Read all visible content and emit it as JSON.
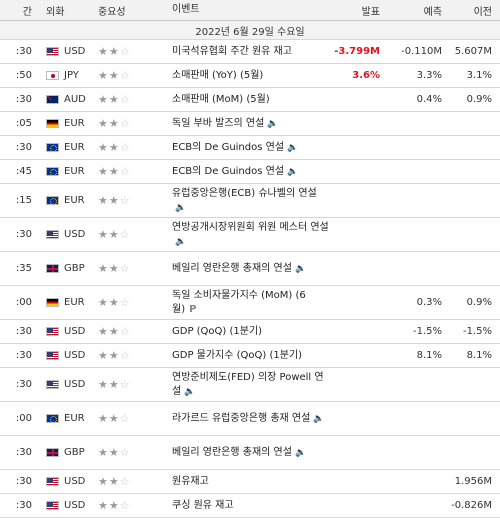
{
  "header": {
    "time": "간",
    "currency": "외화",
    "importance": "중요성",
    "event": "이벤트",
    "actual": "발표",
    "forecast": "예측",
    "previous": "이전"
  },
  "date_label": "2022년 6월 29일 수요일",
  "rows": [
    {
      "time": ":30",
      "flag": "us",
      "currency": "USD",
      "stars": 2,
      "event": "미국석유협회 주간 원유 재고",
      "actual": "-3.799M",
      "actual_red": true,
      "forecast": "-0.110M",
      "previous": "5.607M",
      "speech": false,
      "lines": 1
    },
    {
      "time": ":50",
      "flag": "jp",
      "currency": "JPY",
      "stars": 2,
      "event": "소매판매 (YoY) (5월)",
      "actual": "3.6%",
      "actual_red": true,
      "forecast": "3.3%",
      "previous": "3.1%",
      "speech": false,
      "lines": 1
    },
    {
      "time": ":30",
      "flag": "au",
      "currency": "AUD",
      "stars": 2,
      "event": "소매판매 (MoM) (5월)",
      "actual": "",
      "actual_red": false,
      "forecast": "0.4%",
      "previous": "0.9%",
      "speech": false,
      "lines": 1
    },
    {
      "time": ":05",
      "flag": "de",
      "currency": "EUR",
      "stars": 2,
      "event": "독일 부바 발즈의 연설",
      "actual": "",
      "actual_red": false,
      "forecast": "",
      "previous": "",
      "speech": true,
      "lines": 1
    },
    {
      "time": ":30",
      "flag": "eu",
      "currency": "EUR",
      "stars": 2,
      "event": "ECB의 De Guindos 연설",
      "actual": "",
      "actual_red": false,
      "forecast": "",
      "previous": "",
      "speech": true,
      "lines": 1
    },
    {
      "time": ":45",
      "flag": "eu",
      "currency": "EUR",
      "stars": 2,
      "event": "ECB의 De Guindos 연설",
      "actual": "",
      "actual_red": false,
      "forecast": "",
      "previous": "",
      "speech": true,
      "lines": 1
    },
    {
      "time": ":15",
      "flag": "eu",
      "currency": "EUR",
      "stars": 2,
      "event": "유럽중앙은행(ECB) 슈나벨의 연설",
      "actual": "",
      "actual_red": false,
      "forecast": "",
      "previous": "",
      "speech": true,
      "lines": 2
    },
    {
      "time": ":30",
      "flag": "us",
      "currency": "USD",
      "stars": 2,
      "event": "연방공개시장위원회 위원 메스터 연설",
      "actual": "",
      "actual_red": false,
      "forecast": "",
      "previous": "",
      "speech": true,
      "lines": 2
    },
    {
      "time": ":35",
      "flag": "gb",
      "currency": "GBP",
      "stars": 2,
      "event": "베일리 영란은행 총재의 연설",
      "actual": "",
      "actual_red": false,
      "forecast": "",
      "previous": "",
      "speech": true,
      "lines": 2
    },
    {
      "time": ":00",
      "flag": "de",
      "currency": "EUR",
      "stars": 2,
      "event": "독일 소비자물가지수 (MoM) (6월)",
      "actual": "",
      "actual_red": false,
      "forecast": "0.3%",
      "previous": "0.9%",
      "speech": false,
      "prelim": "P",
      "lines": 2
    },
    {
      "time": ":30",
      "flag": "us",
      "currency": "USD",
      "stars": 2,
      "event": "GDP (QoQ) (1분기)",
      "actual": "",
      "actual_red": false,
      "forecast": "-1.5%",
      "previous": "-1.5%",
      "speech": false,
      "lines": 1
    },
    {
      "time": ":30",
      "flag": "us",
      "currency": "USD",
      "stars": 2,
      "event": "GDP 물가지수 (QoQ) (1분기)",
      "actual": "",
      "actual_red": false,
      "forecast": "8.1%",
      "previous": "8.1%",
      "speech": false,
      "lines": 1
    },
    {
      "time": ":30",
      "flag": "us",
      "currency": "USD",
      "stars": 2,
      "event": "연방준비제도(FED) 의장 Powell 연설",
      "actual": "",
      "actual_red": false,
      "forecast": "",
      "previous": "",
      "speech": true,
      "lines": 2
    },
    {
      "time": ":00",
      "flag": "eu",
      "currency": "EUR",
      "stars": 2,
      "event": "라가르드 유럽중앙은행 총재 연설",
      "actual": "",
      "actual_red": false,
      "forecast": "",
      "previous": "",
      "speech": true,
      "lines": 2
    },
    {
      "time": ":30",
      "flag": "gb",
      "currency": "GBP",
      "stars": 2,
      "event": "베일리 영란은행 총재의 연설",
      "actual": "",
      "actual_red": false,
      "forecast": "",
      "previous": "",
      "speech": true,
      "lines": 2
    },
    {
      "time": ":30",
      "flag": "us",
      "currency": "USD",
      "stars": 2,
      "event": "원유재고",
      "actual": "",
      "actual_red": false,
      "forecast": "",
      "previous": "1.956M",
      "speech": false,
      "lines": 1
    },
    {
      "time": ":30",
      "flag": "us",
      "currency": "USD",
      "stars": 2,
      "event": "쿠싱 원유 재고",
      "actual": "",
      "actual_red": false,
      "forecast": "",
      "previous": "-0.826M",
      "speech": false,
      "lines": 1
    }
  ]
}
